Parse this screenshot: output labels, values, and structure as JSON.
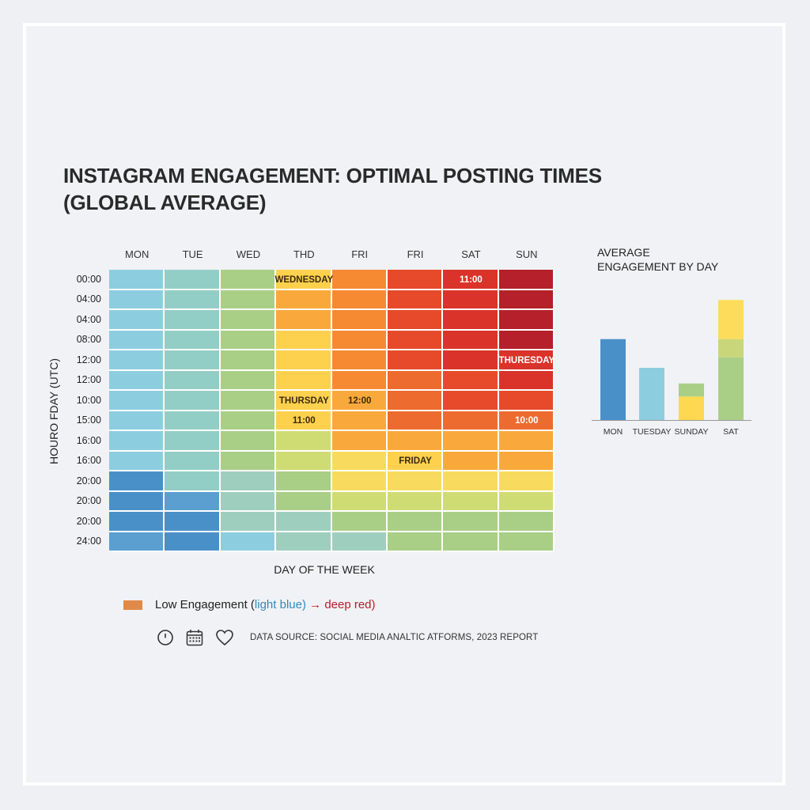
{
  "colors": {
    "b1": "#4a90c8",
    "b2": "#5a9fd0",
    "c1": "#8dcde0",
    "c2": "#93cec6",
    "c3": "#9ecfbe",
    "g1": "#a9cf86",
    "g2": "#b6d27f",
    "y1": "#cfdc74",
    "y2": "#f8db5e",
    "y3": "#fdd14d",
    "o1": "#f9a93b",
    "o2": "#f58a33",
    "o3": "#ee6b2f",
    "r1": "#e64a2b",
    "r2": "#d9332a",
    "r3": "#b5202a",
    "orange_legend": "#e08a4a"
  },
  "chart_data": [
    {
      "type": "heatmap",
      "title": "INSTAGRAM ENGAGEMENT: OPTIMAL POSTING TIMES",
      "subtitle": "(GLOBAL AVERAGE)",
      "xlabel": "DAY OF THE WEEK",
      "ylabel": "HOURO FDAY (UTC)",
      "x_categories": [
        "MON",
        "TUE",
        "WED",
        "THD",
        "FRI",
        "FRI",
        "SAT",
        "SUN"
      ],
      "y_categories": [
        "00:00",
        "04:00",
        "04:00",
        "08:00",
        "12:00",
        "12:00",
        "10:00",
        "15:00",
        "16:00",
        "16:00",
        "20:00",
        "20:00",
        "20:00",
        "24:00"
      ],
      "cells": [
        [
          "c1",
          "c2",
          "g1",
          "y3",
          "o2",
          "r1",
          "r2",
          "r3"
        ],
        [
          "c1",
          "c2",
          "g1",
          "o1",
          "o2",
          "r1",
          "r2",
          "r3"
        ],
        [
          "c1",
          "c2",
          "g1",
          "o1",
          "o2",
          "r1",
          "r2",
          "r3"
        ],
        [
          "c1",
          "c2",
          "g1",
          "y3",
          "o2",
          "r1",
          "r2",
          "r3"
        ],
        [
          "c1",
          "c2",
          "g1",
          "y3",
          "o2",
          "r1",
          "r2",
          "r2"
        ],
        [
          "c1",
          "c2",
          "g1",
          "y3",
          "o2",
          "o3",
          "r1",
          "r2"
        ],
        [
          "c1",
          "c2",
          "g1",
          "y3",
          "o1",
          "o3",
          "r1",
          "r1"
        ],
        [
          "c1",
          "c2",
          "g1",
          "y3",
          "o1",
          "o3",
          "o3",
          "o3"
        ],
        [
          "c1",
          "c2",
          "g1",
          "y1",
          "o1",
          "o1",
          "o1",
          "o1"
        ],
        [
          "c1",
          "c2",
          "g1",
          "y1",
          "y2",
          "y3",
          "o1",
          "o1"
        ],
        [
          "b1",
          "c2",
          "c3",
          "g1",
          "y2",
          "y2",
          "y2",
          "y2"
        ],
        [
          "b1",
          "b2",
          "c3",
          "g1",
          "y1",
          "y1",
          "y1",
          "y1"
        ],
        [
          "b1",
          "b1",
          "c3",
          "c3",
          "g1",
          "g1",
          "g1",
          "g1"
        ],
        [
          "b2",
          "b1",
          "c1",
          "c3",
          "c3",
          "g1",
          "g1",
          "g1"
        ]
      ],
      "annotations": [
        {
          "text": "WEDNESDAY",
          "col": 3,
          "row": 0,
          "color": "#3a2a10"
        },
        {
          "text": "11:00",
          "col": 6,
          "row": 0,
          "color": "#ffffff"
        },
        {
          "text": "THURESDAY",
          "col": 7,
          "row": 4,
          "color": "#ffffff"
        },
        {
          "text": "THURSDAY",
          "col": 3,
          "row": 6,
          "color": "#3a2a10"
        },
        {
          "text": "12:00",
          "col": 4,
          "row": 6,
          "color": "#3a2a10"
        },
        {
          "text": "11:00",
          "col": 3,
          "row": 7,
          "color": "#3a2a10"
        },
        {
          "text": "10:00",
          "col": 7,
          "row": 7,
          "color": "#ffffff"
        },
        {
          "text": "FRIDAY",
          "col": 5,
          "row": 9,
          "color": "#3a2a10"
        }
      ]
    },
    {
      "type": "bar",
      "title": "AVERAGE ENGAGEMENT BY DAY",
      "categories": [
        "MON",
        "TUESDAY",
        "SUNDAY",
        "SAT"
      ],
      "ylim": [
        0,
        100
      ],
      "series_stacks": [
        [
          {
            "value": 62,
            "color": "#4a90c8"
          }
        ],
        [
          {
            "value": 40,
            "color": "#8dcde0"
          }
        ],
        [
          {
            "value": 18,
            "color": "#fdd850"
          },
          {
            "value": 10,
            "color": "#a9cf86"
          }
        ],
        [
          {
            "value": 48,
            "color": "#a9cf86"
          },
          {
            "value": 14,
            "color": "#c9d67a"
          },
          {
            "value": 30,
            "color": "#fddc5c"
          }
        ]
      ]
    }
  ],
  "legend": {
    "text_before": "Low Engagement (",
    "light_blue": "light blue",
    "text_mid": ")",
    "arrow": " → ",
    "deep_red": "deep red",
    "text_after": ")"
  },
  "source": {
    "text": "DATA SOURCE: SOCIAL MEDIA ANALTIC ATFORMS, 2023 REPORT",
    "icons": [
      "clock-icon",
      "calendar-icon",
      "heart-icon"
    ]
  }
}
